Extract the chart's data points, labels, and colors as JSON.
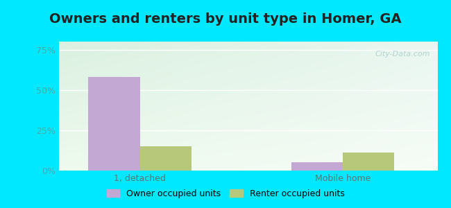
{
  "title": "Owners and renters by unit type in Homer, GA",
  "categories": [
    "1, detached",
    "Mobile home"
  ],
  "owner_values": [
    58,
    5
  ],
  "renter_values": [
    15,
    11
  ],
  "owner_color": "#c4a8d4",
  "renter_color": "#b8c87a",
  "yticks": [
    0,
    25,
    50,
    75
  ],
  "ytick_labels": [
    "0%",
    "25%",
    "50%",
    "75%"
  ],
  "ylim": [
    0,
    80
  ],
  "bar_width": 0.38,
  "background_color": "#00e8ff",
  "plot_bg_topleft": "#ddeedd",
  "plot_bg_topright": "#e8f5f5",
  "plot_bg_bottom": "#f0faf0",
  "watermark": "City-Data.com",
  "legend_owner": "Owner occupied units",
  "legend_renter": "Renter occupied units",
  "title_fontsize": 14,
  "axis_fontsize": 9,
  "legend_fontsize": 9,
  "tick_color": "#44aaaa"
}
